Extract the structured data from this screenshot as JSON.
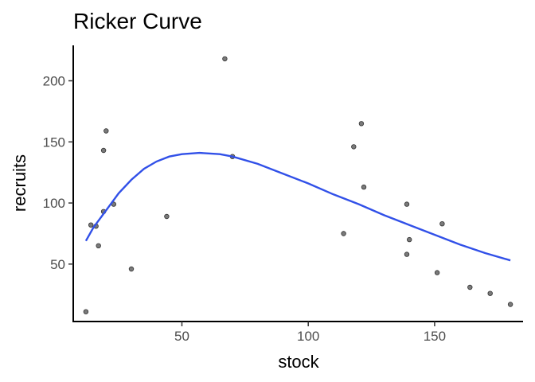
{
  "chart_data": {
    "type": "scatter",
    "title": "Ricker Curve",
    "xlabel": "stock",
    "ylabel": "recruits",
    "xlim": [
      7,
      185
    ],
    "ylim": [
      3,
      229
    ],
    "x_ticks": [
      50,
      100,
      150
    ],
    "y_ticks": [
      50,
      100,
      150,
      200
    ],
    "grid": false,
    "legend": "none",
    "colors": {
      "points": "#7a7a7a",
      "point_outline": "#333333",
      "curve": "#3150e8",
      "axis": "#000000"
    },
    "series": [
      {
        "kind": "points",
        "x": [
          12,
          14,
          16,
          17,
          19,
          19,
          20,
          23,
          30,
          44,
          67,
          70,
          114,
          118,
          121,
          122,
          139,
          139,
          140,
          151,
          153,
          164,
          172,
          180
        ],
        "y": [
          11,
          82,
          81,
          65,
          93,
          143,
          159,
          99,
          46,
          89,
          218,
          138,
          75,
          146,
          165,
          113,
          99,
          58,
          70,
          43,
          83,
          31,
          26,
          17
        ]
      },
      {
        "kind": "fitted-curve",
        "x": [
          12,
          15,
          20,
          25,
          30,
          35,
          40,
          45,
          50,
          57,
          65,
          70,
          80,
          90,
          100,
          110,
          120,
          130,
          140,
          150,
          160,
          170,
          180
        ],
        "y": [
          69,
          80,
          94,
          108,
          119,
          128,
          134,
          138,
          140,
          141,
          140,
          138,
          132,
          124,
          116,
          107,
          99,
          90,
          82,
          74,
          66,
          59,
          53
        ]
      }
    ]
  }
}
